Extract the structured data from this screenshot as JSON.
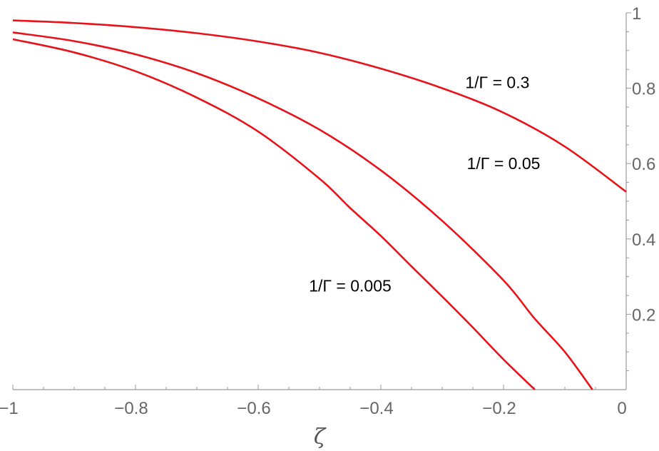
{
  "chart_data": {
    "type": "line",
    "xlabel": "ζ",
    "ylabel": "",
    "xlim": [
      -1,
      0
    ],
    "ylim": [
      0,
      1
    ],
    "grid": false,
    "x_ticks": [
      "−1",
      "−0.8",
      "−0.6",
      "−0.4",
      "−0.2",
      "0"
    ],
    "x_tick_values": [
      -1,
      -0.8,
      -0.6,
      -0.4,
      -0.2,
      0
    ],
    "y_ticks": [
      "0.2",
      "0.4",
      "0.6",
      "0.8",
      "1"
    ],
    "y_tick_values": [
      0.2,
      0.4,
      0.6,
      0.8,
      1
    ],
    "line_color": "#e8131a",
    "axis_color": "#999999",
    "series": [
      {
        "name": "1/Γ = 0.3",
        "x": [
          -1.0,
          -0.9,
          -0.8,
          -0.7,
          -0.6,
          -0.5,
          -0.4,
          -0.3,
          -0.2,
          -0.1,
          0.0
        ],
        "y": [
          0.98,
          0.973,
          0.962,
          0.946,
          0.924,
          0.894,
          0.852,
          0.8,
          0.735,
          0.645,
          0.525
        ]
      },
      {
        "name": "1/Γ = 0.05",
        "x": [
          -1.0,
          -0.9,
          -0.8,
          -0.7,
          -0.6,
          -0.5,
          -0.4,
          -0.3,
          -0.2,
          -0.15,
          -0.1,
          -0.055
        ],
        "y": [
          0.948,
          0.925,
          0.89,
          0.84,
          0.773,
          0.69,
          0.582,
          0.448,
          0.29,
          0.19,
          0.1,
          0.0
        ]
      },
      {
        "name": "1/Γ = 0.005",
        "x": [
          -1.0,
          -0.9,
          -0.8,
          -0.7,
          -0.6,
          -0.5,
          -0.45,
          -0.4,
          -0.35,
          -0.3,
          -0.25,
          -0.2,
          -0.149
        ],
        "y": [
          0.93,
          0.895,
          0.845,
          0.775,
          0.685,
          0.56,
          0.482,
          0.408,
          0.327,
          0.247,
          0.165,
          0.08,
          0.0
        ]
      }
    ],
    "annotations": [
      {
        "text": "1/Γ = 0.3",
        "x": -0.21,
        "y": 0.8
      },
      {
        "text": "1/Γ = 0.05",
        "x": -0.2,
        "y": 0.585
      },
      {
        "text": "1/Γ = 0.005",
        "x": -0.45,
        "y": 0.26
      }
    ]
  }
}
